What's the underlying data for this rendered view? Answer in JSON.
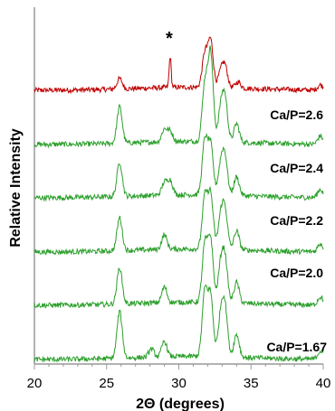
{
  "chart_data": {
    "type": "line",
    "title": "",
    "xlabel": "2Θ (degrees)",
    "ylabel": "Relative Intensity",
    "xlim": [
      20,
      40
    ],
    "x_ticks": [
      20,
      25,
      30,
      35,
      40
    ],
    "x_tick_labels": [
      "20",
      "25",
      "30",
      "35",
      "40"
    ],
    "grid": false,
    "legend": "none",
    "annotations": [
      {
        "text": "*",
        "x": 29.4
      }
    ],
    "series": [
      {
        "label": "",
        "color": "#c00000",
        "baseline": 0.0,
        "peaks": [
          [
            25.9,
            0.1
          ],
          [
            29.4,
            0.3
          ],
          [
            31.8,
            0.32
          ],
          [
            32.2,
            0.45
          ],
          [
            32.9,
            0.14
          ],
          [
            33.2,
            0.2
          ],
          [
            34.1,
            0.06
          ],
          [
            39.8,
            0.05
          ]
        ]
      },
      {
        "label": "Ca/P=2.6",
        "color": "#2ca02c",
        "baseline": 0.0,
        "peaks": [
          [
            25.9,
            0.35
          ],
          [
            29.0,
            0.12
          ],
          [
            29.4,
            0.1
          ],
          [
            31.8,
            0.55
          ],
          [
            32.2,
            0.85
          ],
          [
            32.9,
            0.3
          ],
          [
            33.2,
            0.4
          ],
          [
            34.0,
            0.18
          ],
          [
            39.8,
            0.08
          ]
        ]
      },
      {
        "label": "Ca/P=2.4",
        "color": "#2ca02c",
        "baseline": 0.0,
        "peaks": [
          [
            25.9,
            0.33
          ],
          [
            29.0,
            0.12
          ],
          [
            29.4,
            0.14
          ],
          [
            31.8,
            0.52
          ],
          [
            32.2,
            0.48
          ],
          [
            32.9,
            0.28
          ],
          [
            33.2,
            0.35
          ],
          [
            34.0,
            0.18
          ],
          [
            39.8,
            0.08
          ]
        ]
      },
      {
        "label": "Ca/P=2.2",
        "color": "#2ca02c",
        "baseline": 0.0,
        "peaks": [
          [
            25.9,
            0.32
          ],
          [
            29.0,
            0.14
          ],
          [
            31.8,
            0.5
          ],
          [
            32.2,
            0.52
          ],
          [
            32.9,
            0.3
          ],
          [
            33.2,
            0.36
          ],
          [
            34.0,
            0.18
          ],
          [
            39.8,
            0.08
          ]
        ]
      },
      {
        "label": "Ca/P=2.0",
        "color": "#2ca02c",
        "baseline": 0.0,
        "peaks": [
          [
            25.9,
            0.35
          ],
          [
            29.0,
            0.15
          ],
          [
            31.8,
            0.55
          ],
          [
            32.2,
            0.6
          ],
          [
            32.9,
            0.35
          ],
          [
            33.2,
            0.4
          ],
          [
            34.0,
            0.2
          ],
          [
            39.8,
            0.08
          ]
        ]
      },
      {
        "label": "Ca/P=1.67",
        "color": "#2ca02c",
        "baseline": 0.0,
        "peaks": [
          [
            25.9,
            0.45
          ],
          [
            28.1,
            0.08
          ],
          [
            29.0,
            0.15
          ],
          [
            31.8,
            0.62
          ],
          [
            32.2,
            0.58
          ],
          [
            32.9,
            0.38
          ],
          [
            33.2,
            0.45
          ],
          [
            34.0,
            0.22
          ],
          [
            39.8,
            0.08
          ]
        ]
      }
    ]
  }
}
